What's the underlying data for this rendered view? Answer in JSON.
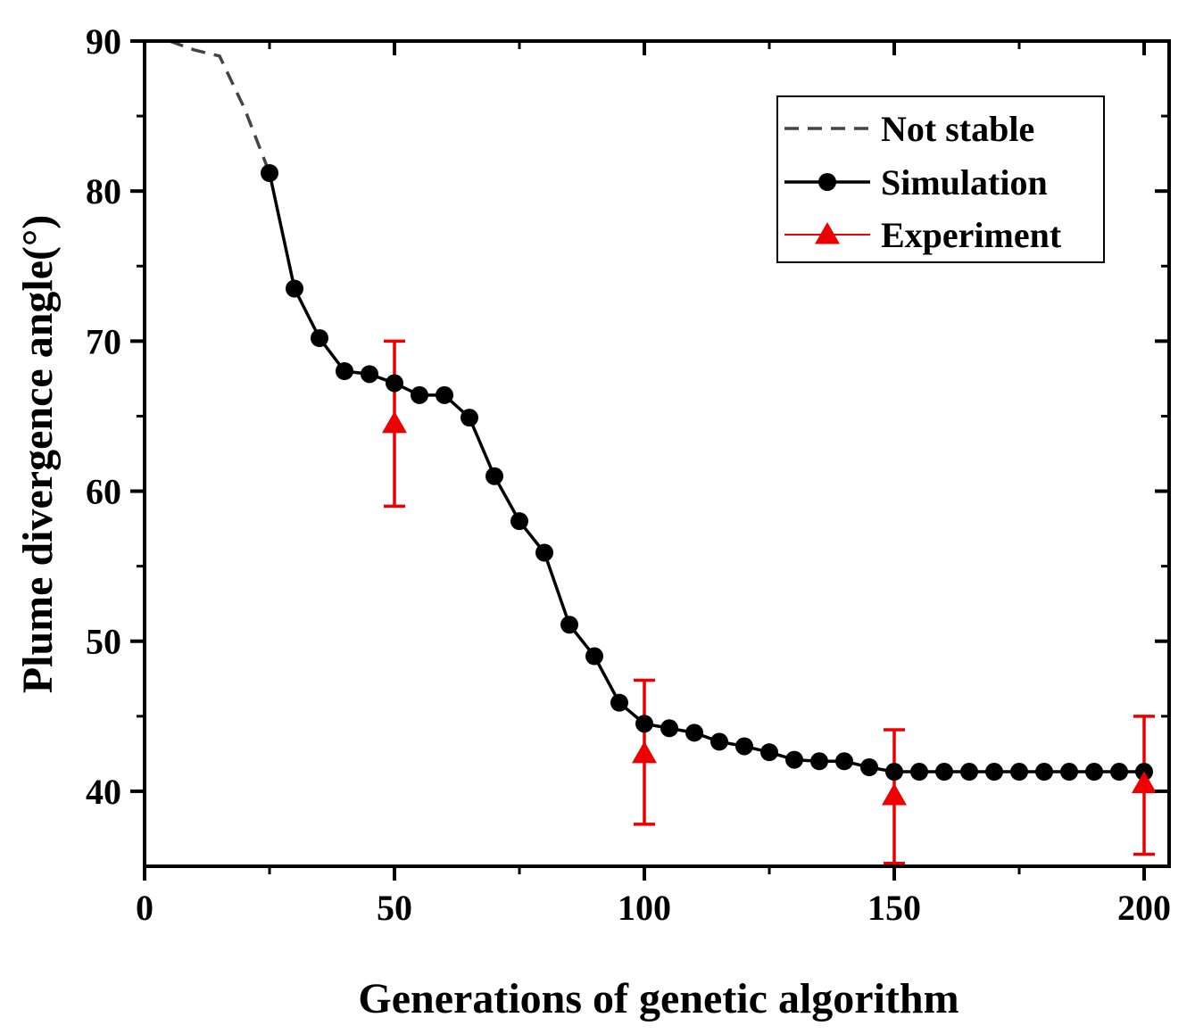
{
  "chart_data": {
    "type": "line",
    "xlabel": "Generations of genetic algorithm",
    "ylabel": "Plume divergence angle(°)",
    "xlim": [
      0,
      205
    ],
    "ylim": [
      35,
      90
    ],
    "xticks": [
      0,
      50,
      100,
      150,
      200
    ],
    "yticks": [
      40,
      50,
      60,
      70,
      80,
      90
    ],
    "xtick_labels": [
      "0",
      "50",
      "100",
      "150",
      "200"
    ],
    "ytick_labels": [
      "40",
      "50",
      "60",
      "70",
      "80",
      "90"
    ],
    "grid": false,
    "legend_position": "top-right",
    "series": [
      {
        "name": "Not stable",
        "style": "dashed",
        "color": "#444444",
        "x": [
          5,
          10,
          15,
          20,
          25
        ],
        "y": [
          90,
          89.4,
          89,
          85.5,
          81.2
        ]
      },
      {
        "name": "Simulation",
        "style": "line-circle",
        "color": "#000000",
        "x": [
          25,
          30,
          35,
          40,
          45,
          50,
          55,
          60,
          65,
          70,
          75,
          80,
          85,
          90,
          95,
          100,
          105,
          110,
          115,
          120,
          125,
          130,
          135,
          140,
          145,
          150,
          155,
          160,
          165,
          170,
          175,
          180,
          185,
          190,
          195,
          200
        ],
        "y": [
          81.2,
          73.5,
          70.2,
          68.0,
          67.8,
          67.2,
          66.4,
          66.4,
          64.9,
          61.0,
          58.0,
          55.9,
          51.1,
          49.0,
          45.9,
          44.5,
          44.2,
          43.9,
          43.3,
          43.0,
          42.6,
          42.1,
          42.0,
          42.0,
          41.6,
          41.3,
          41.3,
          41.3,
          41.3,
          41.3,
          41.3,
          41.3,
          41.3,
          41.3,
          41.3,
          41.3
        ]
      },
      {
        "name": "Experiment",
        "style": "triangle-errorbar",
        "color": "#ee0000",
        "x": [
          50,
          100,
          150,
          200
        ],
        "y": [
          64.5,
          42.5,
          39.7,
          40.5
        ],
        "error_low": [
          59.0,
          37.8,
          35.2,
          35.8
        ],
        "error_high": [
          70.0,
          47.4,
          44.1,
          45.0
        ]
      }
    ]
  }
}
